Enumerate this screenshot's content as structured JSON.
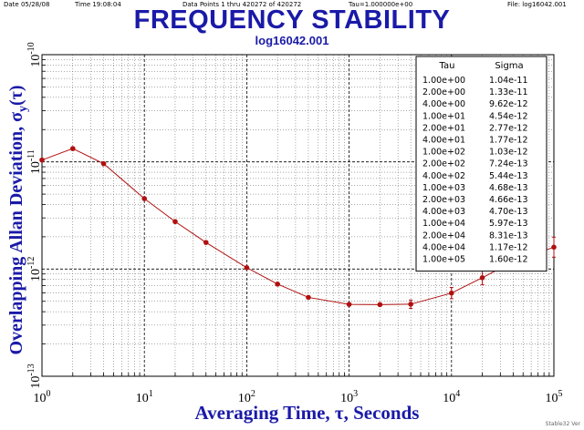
{
  "header": {
    "date": "Date  05/28/08",
    "time": "Time  19:08:04",
    "data_points": "Data Points 1 thru 420272 of 420272",
    "tau": "Tau=1.000000e+00",
    "file": "File: log16042.001"
  },
  "watermark": "Stable32 Ver",
  "colors": {
    "title": "#1a1aa8",
    "curve": "#b01010",
    "axis_title": "#1a1aa8"
  },
  "chart_data": {
    "type": "line",
    "title": "FREQUENCY STABILITY",
    "subtitle": "log16042.001",
    "xlabel": "Averaging Time, τ, Seconds",
    "ylabel": "Overlapping Allan Deviation, σy(τ)",
    "xscale": "log",
    "yscale": "log",
    "xlim": [
      1,
      100000
    ],
    "ylim": [
      1e-13,
      1e-10
    ],
    "grid": true,
    "x_ticks": [
      {
        "base": "10",
        "exp": "0"
      },
      {
        "base": "10",
        "exp": "1"
      },
      {
        "base": "10",
        "exp": "2"
      },
      {
        "base": "10",
        "exp": "3"
      },
      {
        "base": "10",
        "exp": "4"
      },
      {
        "base": "10",
        "exp": "5"
      }
    ],
    "y_ticks": [
      {
        "base": "10",
        "exp": "-13"
      },
      {
        "base": "10",
        "exp": "-12"
      },
      {
        "base": "10",
        "exp": "-11"
      },
      {
        "base": "10",
        "exp": "-10"
      }
    ],
    "table_headers": [
      "Tau",
      "Sigma"
    ],
    "table_rows": [
      [
        "1.00e+00",
        "1.04e-11"
      ],
      [
        "2.00e+00",
        "1.33e-11"
      ],
      [
        "4.00e+00",
        "9.62e-12"
      ],
      [
        "1.00e+01",
        "4.54e-12"
      ],
      [
        "2.00e+01",
        "2.77e-12"
      ],
      [
        "4.00e+01",
        "1.77e-12"
      ],
      [
        "1.00e+02",
        "1.03e-12"
      ],
      [
        "2.00e+02",
        "7.24e-13"
      ],
      [
        "4.00e+02",
        "5.44e-13"
      ],
      [
        "1.00e+03",
        "4.68e-13"
      ],
      [
        "2.00e+03",
        "4.66e-13"
      ],
      [
        "4.00e+03",
        "4.70e-13"
      ],
      [
        "1.00e+04",
        "5.97e-13"
      ],
      [
        "2.00e+04",
        "8.31e-13"
      ],
      [
        "4.00e+04",
        "1.17e-12"
      ],
      [
        "1.00e+05",
        "1.60e-12"
      ]
    ],
    "series": [
      {
        "x": [
          1,
          2,
          4,
          10,
          20,
          40,
          100,
          200,
          400,
          1000,
          2000,
          4000,
          10000,
          20000,
          40000,
          100000
        ],
        "y": [
          1.04e-11,
          1.33e-11,
          9.62e-12,
          4.54e-12,
          2.77e-12,
          1.77e-12,
          1.03e-12,
          7.24e-13,
          5.44e-13,
          4.68e-13,
          4.66e-13,
          4.7e-13,
          5.97e-13,
          8.31e-13,
          1.17e-12,
          1.6e-12
        ],
        "error_bars": [
          false,
          false,
          false,
          false,
          false,
          false,
          false,
          false,
          false,
          false,
          false,
          true,
          true,
          true,
          true,
          true
        ]
      }
    ]
  }
}
